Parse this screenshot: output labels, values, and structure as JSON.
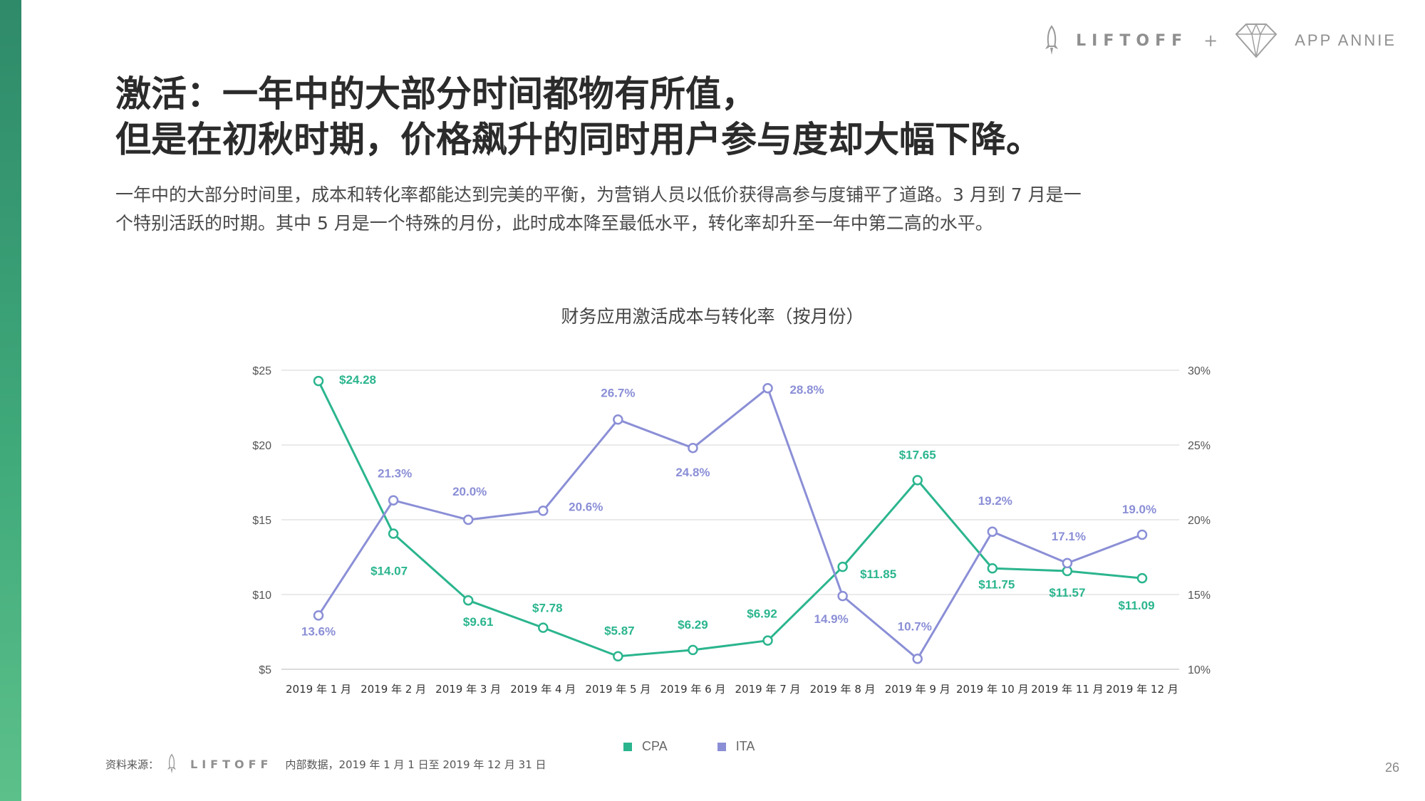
{
  "brand": {
    "liftoff": "LIFTOFF",
    "plus": "+",
    "app_annie": "APP ANNIE"
  },
  "headline": {
    "line1": "激活：一年中的大部分时间都物有所值，",
    "line2": "但是在初秋时期，价格飙升的同时用户参与度却大幅下降。"
  },
  "body": {
    "line1": "一年中的大部分时间里，成本和转化率都能达到完美的平衡，为营销人员以低价获得高参与度铺平了道路。3 月到 7 月是一",
    "line2": "个特别活跃的时期。其中 5 月是一个特殊的月份，此时成本降至最低水平，转化率却升至一年中第二高的水平。"
  },
  "chart_data": {
    "type": "line",
    "title": "财务应用激活成本与转化率（按月份）",
    "categories": [
      "2019 年 1 月",
      "2019 年 2 月",
      "2019 年 3 月",
      "2019 年 4 月",
      "2019 年 5 月",
      "2019 年 6 月",
      "2019 年 7 月",
      "2019 年 8 月",
      "2019 年 9 月",
      "2019 年 10 月",
      "2019 年 11 月",
      "2019 年 12 月"
    ],
    "left_axis": {
      "ticks": [
        "$25",
        "$20",
        "$15",
        "$10",
        "$5"
      ],
      "range": [
        5,
        25
      ]
    },
    "right_axis": {
      "ticks": [
        "30%",
        "25%",
        "20%",
        "15%",
        "10%"
      ],
      "range": [
        10,
        30
      ]
    },
    "grid": true,
    "legend_position": "bottom",
    "series": [
      {
        "name": "CPA",
        "axis": "left",
        "color": "#2bb58e",
        "values": [
          24.28,
          14.07,
          9.61,
          7.78,
          5.87,
          6.29,
          6.92,
          11.85,
          17.65,
          11.75,
          11.57,
          11.09
        ],
        "labels": [
          "$24.28",
          "$14.07",
          "$9.61",
          "$7.78",
          "$5.87",
          "$6.29",
          "$6.92",
          "$11.85",
          "$17.65",
          "$11.75",
          "$11.57",
          "$11.09"
        ]
      },
      {
        "name": "ITA",
        "axis": "right",
        "color": "#8b8fd6",
        "values": [
          13.6,
          21.3,
          20.0,
          20.6,
          26.7,
          24.8,
          28.8,
          14.9,
          10.7,
          19.2,
          17.1,
          19.0
        ],
        "labels": [
          "13.6%",
          "21.3%",
          "20.0%",
          "20.6%",
          "26.7%",
          "24.8%",
          "28.8%",
          "14.9%",
          "10.7%",
          "19.2%",
          "17.1%",
          "19.0%"
        ]
      }
    ]
  },
  "legend": {
    "cpa": "CPA",
    "ita": "ITA",
    "cpa_color": "#2bb58e",
    "ita_color": "#8b8fd6"
  },
  "source": {
    "prefix": "资料来源：",
    "liftoff": "LIFTOFF",
    "text": "内部数据，2019 年 1 月 1 日至 2019 年 12 月 31 日"
  },
  "page_number": "26"
}
